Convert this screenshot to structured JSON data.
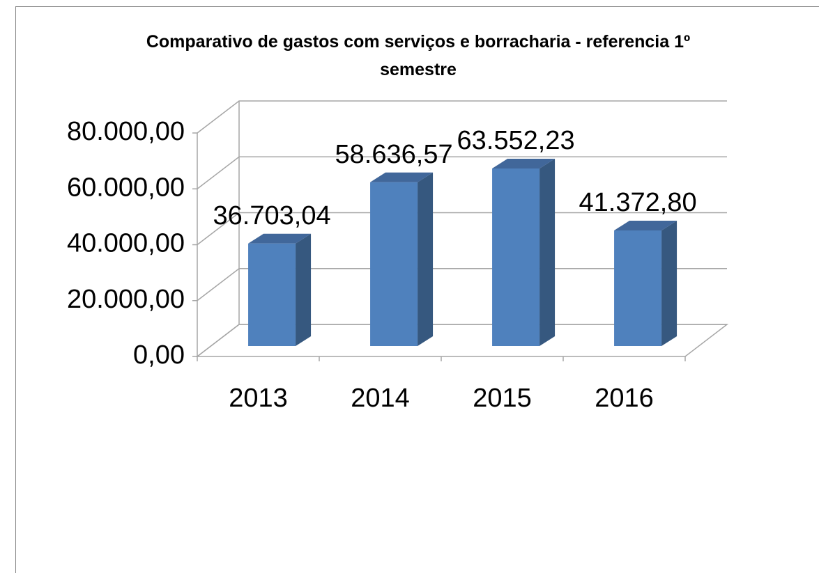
{
  "chart_data": {
    "type": "bar3d",
    "title": "Comparativo de gastos com serviços e borracharia - referencia 1º semestre",
    "categories": [
      "2013",
      "2014",
      "2015",
      "2016"
    ],
    "values": [
      36703.04,
      58636.57,
      63552.23,
      41372.8
    ],
    "value_labels": [
      "36.703,04",
      "58.636,57",
      "63.552,23",
      "41.372,80"
    ],
    "color": "#4f81bd",
    "ylim": [
      0,
      80000
    ],
    "yticks": [
      {
        "value": 0,
        "label": "0,00"
      },
      {
        "value": 20000,
        "label": "20.000,00"
      },
      {
        "value": 40000,
        "label": "40.000,00"
      },
      {
        "value": 60000,
        "label": "60.000,00"
      },
      {
        "value": 80000,
        "label": "80.000,00"
      }
    ],
    "grid": true
  }
}
